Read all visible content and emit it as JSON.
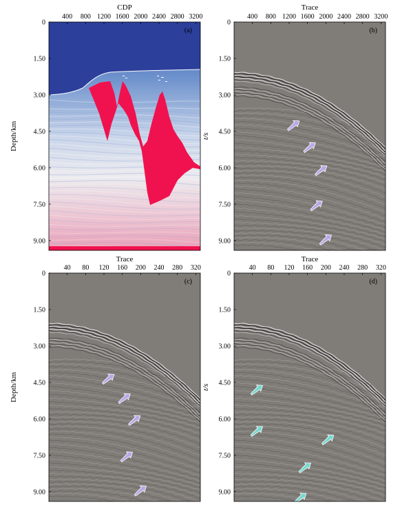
{
  "figure": {
    "panels": [
      {
        "id": "a",
        "letter": "(a)",
        "x_title": "CDP",
        "y_title": "Depth/km",
        "x_ticks": [
          "400",
          "800",
          "1200",
          "1600",
          "2000",
          "2400",
          "2800",
          "3200"
        ],
        "x_tick_values": [
          400,
          800,
          1200,
          1600,
          2000,
          2400,
          2800,
          3200
        ],
        "x_range": [
          0,
          3300
        ],
        "y_ticks": [
          "0",
          "1.50",
          "3.00",
          "4.50",
          "6.00",
          "7.50",
          "9.00"
        ],
        "y_tick_values": [
          0,
          1.5,
          3.0,
          4.5,
          6.0,
          7.5,
          9.0
        ],
        "y_range": [
          0,
          9.4
        ],
        "kind": "velocity-model",
        "colors": {
          "water": "#2c3f9b",
          "salt": "#f0124e",
          "shallow": "#3d66b5",
          "deep": "#e8a9bf",
          "mid": "#e9e9ee"
        }
      },
      {
        "id": "b",
        "letter": "(b)",
        "x_title": "Trace",
        "y_title": "t/s",
        "x_ticks": [
          "400",
          "800",
          "1200",
          "1600",
          "2000",
          "2400",
          "2800",
          "3200"
        ],
        "x_tick_values": [
          400,
          800,
          1200,
          1600,
          2000,
          2400,
          2800,
          3200
        ],
        "x_range": [
          0,
          3300
        ],
        "y_ticks": [
          "0",
          "1.50",
          "3.00",
          "4.50",
          "6.00",
          "7.50",
          "9.00"
        ],
        "y_tick_values": [
          0,
          1.5,
          3.0,
          4.5,
          6.0,
          7.5,
          9.0
        ],
        "y_range": [
          0,
          9.4
        ],
        "kind": "seismic",
        "arrow_color": "#b7a9e6",
        "arrows": [
          [
            1250,
            4.3
          ],
          [
            1600,
            5.2
          ],
          [
            1850,
            6.15
          ],
          [
            1750,
            7.6
          ],
          [
            1950,
            9.0
          ]
        ]
      },
      {
        "id": "c",
        "letter": "(c)",
        "x_title": "Trace",
        "y_title": "Depth/km",
        "x_ticks": [
          "40",
          "80",
          "120",
          "160",
          "200",
          "240",
          "280",
          "320"
        ],
        "x_tick_values": [
          40,
          80,
          120,
          160,
          200,
          240,
          280,
          320
        ],
        "x_range": [
          0,
          330
        ],
        "y_ticks": [
          "0",
          "1.50",
          "3.00",
          "4.50",
          "6.00",
          "7.50",
          "9.00"
        ],
        "y_tick_values": [
          0,
          1.5,
          3.0,
          4.5,
          6.0,
          7.5,
          9.0
        ],
        "y_range": [
          0,
          9.4
        ],
        "kind": "seismic",
        "arrow_color": "#b7a9e6",
        "arrows": [
          [
            125,
            4.4
          ],
          [
            160,
            5.2
          ],
          [
            182,
            6.1
          ],
          [
            165,
            7.6
          ],
          [
            195,
            9.0
          ]
        ]
      },
      {
        "id": "d",
        "letter": "(d)",
        "x_title": "Trace",
        "y_title": "t/s",
        "x_ticks": [
          "40",
          "80",
          "120",
          "160",
          "200",
          "240",
          "280",
          "320"
        ],
        "x_tick_values": [
          40,
          80,
          120,
          160,
          200,
          240,
          280,
          320
        ],
        "x_range": [
          0,
          330
        ],
        "y_ticks": [
          "0",
          "1.50",
          "3.00",
          "4.50",
          "6.00",
          "7.50",
          "9.00"
        ],
        "y_tick_values": [
          0,
          1.5,
          3.0,
          4.5,
          6.0,
          7.5,
          9.0
        ],
        "y_range": [
          0,
          9.4
        ],
        "kind": "seismic",
        "arrow_color": "#78d8cf",
        "arrows": [
          [
            45,
            4.85
          ],
          [
            45,
            6.55
          ],
          [
            200,
            6.9
          ],
          [
            150,
            8.05
          ],
          [
            140,
            9.3
          ]
        ]
      }
    ]
  }
}
